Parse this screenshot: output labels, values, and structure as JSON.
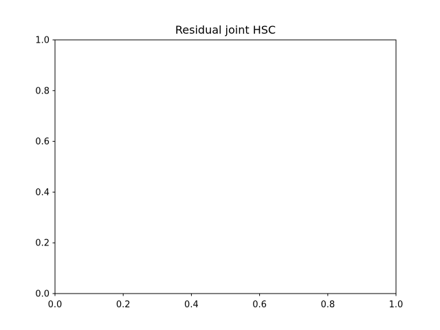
{
  "chart_data": {
    "type": "line",
    "title": "Residual joint HSC",
    "xlabel": "",
    "ylabel": "",
    "xlim": [
      0.0,
      1.0
    ],
    "ylim": [
      0.0,
      1.0
    ],
    "x_ticks": [
      0.0,
      0.2,
      0.4,
      0.6,
      0.8,
      1.0
    ],
    "y_ticks": [
      0.0,
      0.2,
      0.4,
      0.6,
      0.8,
      1.0
    ],
    "x_tick_labels": [
      "0.0",
      "0.2",
      "0.4",
      "0.6",
      "0.8",
      "1.0"
    ],
    "y_tick_labels": [
      "0.0",
      "0.2",
      "0.4",
      "0.6",
      "0.8",
      "1.0"
    ],
    "grid": false,
    "legend": "none",
    "series": []
  }
}
